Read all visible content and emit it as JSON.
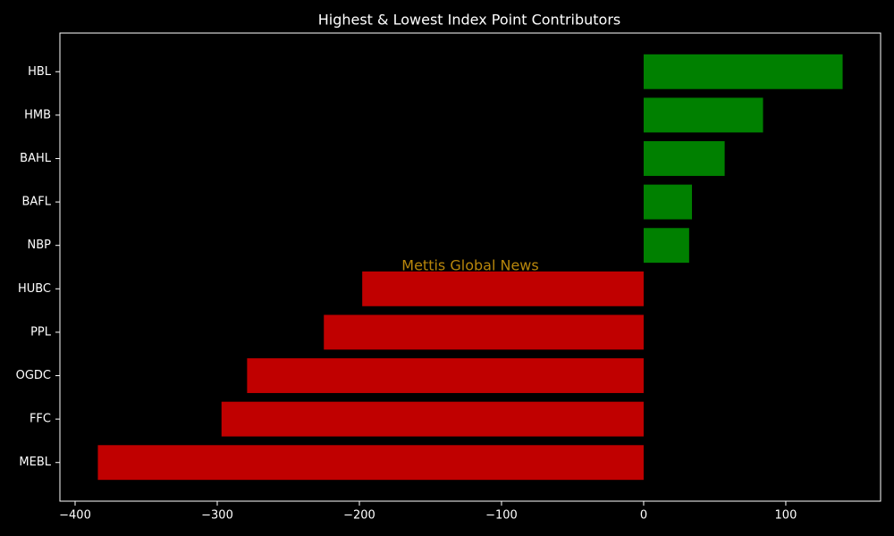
{
  "chart_data": {
    "type": "barh",
    "title": "Highest & Lowest Index Point Contributors",
    "annotation": "Mettis Global News",
    "annotation_color": "#b8860b",
    "categories": [
      "HBL",
      "HMB",
      "BAHL",
      "BAFL",
      "NBP",
      "HUBC",
      "PPL",
      "OGDC",
      "FFC",
      "MEBL"
    ],
    "values": [
      140,
      84,
      57,
      34,
      32,
      -198,
      -225,
      -279,
      -297,
      -384
    ],
    "colors": [
      "#008000",
      "#008000",
      "#008000",
      "#008000",
      "#008000",
      "#c00000",
      "#c00000",
      "#c00000",
      "#c00000",
      "#c00000"
    ],
    "xlim": [
      -410.7,
      166.7
    ],
    "xticks": [
      {
        "value": -400,
        "label": "−400"
      },
      {
        "value": -300,
        "label": "−300"
      },
      {
        "value": -200,
        "label": "−200"
      },
      {
        "value": -100,
        "label": "−100"
      },
      0,
      100
    ],
    "grid": false
  }
}
